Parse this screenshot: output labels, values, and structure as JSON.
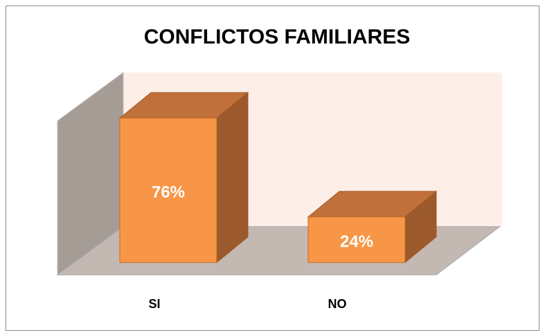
{
  "chart_data": {
    "type": "bar3d",
    "title": "CONFLICTOS FAMILIARES",
    "categories": [
      "SI",
      "NO"
    ],
    "values": [
      76,
      24
    ],
    "value_labels": [
      "76%",
      "24%"
    ],
    "color": "#f79646",
    "ylim": [
      0,
      100
    ]
  }
}
